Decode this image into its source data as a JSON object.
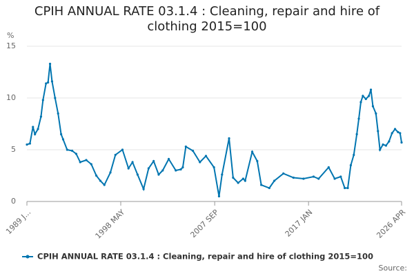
{
  "chart_data": {
    "type": "line",
    "title": "CPIH ANNUAL RATE 03.1.4 : Cleaning, repair and hire of clothing 2015=100",
    "y_label": "%",
    "source": "Source:",
    "xlim": [
      1989.0,
      2026.25
    ],
    "xticks": [
      {
        "value": 1989.0,
        "label": "1989 J..."
      },
      {
        "value": 1998.33,
        "label": "1998 MAY"
      },
      {
        "value": 2007.67,
        "label": "2007 SEP"
      },
      {
        "value": 2017.0,
        "label": "2017 JAN"
      },
      {
        "value": 2026.25,
        "label": "2026 APR"
      }
    ],
    "ylim": [
      0,
      15
    ],
    "yticks": [
      0,
      5,
      10,
      15
    ],
    "grid": true,
    "legend": "bottom",
    "series": [
      {
        "name": "CPIH ANNUAL RATE 03.1.4 : Cleaning, repair and hire of clothing 2015=100",
        "color": "#0075b0",
        "x": [
          1989.0,
          1989.3,
          1989.6,
          1989.8,
          1990.1,
          1990.4,
          1990.6,
          1990.9,
          1991.1,
          1991.3,
          1991.5,
          1991.8,
          1992.1,
          1992.4,
          1992.6,
          1993.0,
          1993.5,
          1993.9,
          1994.3,
          1994.9,
          1995.4,
          1995.9,
          1996.3,
          1996.7,
          1997.3,
          1997.8,
          1998.5,
          1999.1,
          1999.5,
          2000.0,
          2000.6,
          2001.1,
          2001.6,
          2002.1,
          2002.5,
          2003.1,
          2003.8,
          2004.3,
          2004.5,
          2004.8,
          2005.5,
          2006.2,
          2006.8,
          2007.6,
          2008.1,
          2008.4,
          2009.1,
          2009.5,
          2010.0,
          2010.5,
          2010.7,
          2011.4,
          2011.9,
          2012.3,
          2013.1,
          2013.6,
          2014.5,
          2015.5,
          2016.5,
          2017.5,
          2018.0,
          2019.0,
          2019.6,
          2020.2,
          2020.6,
          2020.9,
          2021.2,
          2021.5,
          2021.8,
          2022.0,
          2022.2,
          2022.4,
          2022.7,
          2023.0,
          2023.2,
          2023.4,
          2023.7,
          2023.9,
          2024.1,
          2024.4,
          2024.7,
          2025.0,
          2025.3,
          2025.6,
          2025.9,
          2026.1,
          2026.25
        ],
        "values": [
          5.5,
          5.6,
          7.2,
          6.5,
          7.0,
          8.2,
          9.8,
          11.4,
          11.5,
          13.3,
          11.6,
          10.0,
          8.5,
          6.5,
          6.0,
          5.0,
          4.9,
          4.6,
          3.8,
          4.0,
          3.6,
          2.5,
          2.0,
          1.6,
          2.8,
          4.5,
          5.0,
          3.2,
          3.8,
          2.6,
          1.2,
          3.2,
          3.9,
          2.6,
          3.0,
          4.1,
          3.0,
          3.1,
          3.3,
          5.3,
          4.9,
          3.8,
          4.4,
          3.3,
          0.5,
          2.6,
          6.1,
          2.3,
          1.8,
          2.2,
          2.0,
          4.8,
          3.9,
          1.6,
          1.3,
          2.0,
          2.7,
          2.3,
          2.2,
          2.4,
          2.2,
          3.3,
          2.2,
          2.4,
          1.3,
          1.3,
          3.5,
          4.5,
          6.5,
          8.0,
          9.6,
          10.2,
          9.9,
          10.2,
          10.8,
          9.2,
          8.5,
          6.8,
          5.0,
          5.5,
          5.4,
          5.8,
          6.6,
          7.0,
          6.7,
          6.6,
          5.7
        ]
      }
    ]
  }
}
